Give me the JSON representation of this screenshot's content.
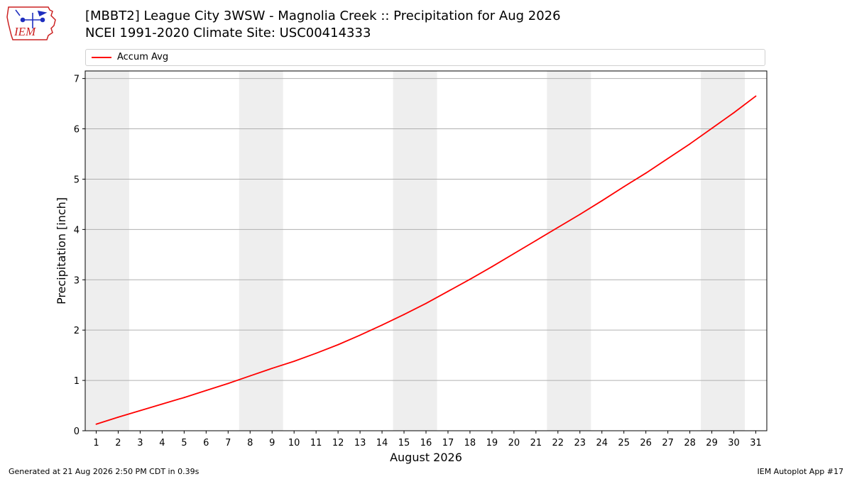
{
  "header": {
    "title_line1": "[MBBT2] League City 3WSW - Magnolia Creek :: Precipitation for Aug 2026",
    "title_line2": "NCEI 1991-2020 Climate Site: USC00414333"
  },
  "logo": {
    "text": "IEM"
  },
  "footer": {
    "generated": "Generated at 21 Aug 2026 2:50 PM CDT in 0.39s",
    "app": "IEM Autoplot App #17"
  },
  "colors": {
    "series": "#ff0000",
    "weekend_band": "#eeeeee",
    "grid": "#b0b0b0",
    "logo_red": "#cc2222",
    "logo_blue": "#1f2fbf"
  },
  "chart_data": {
    "type": "line",
    "title": "[MBBT2] League City 3WSW - Magnolia Creek :: Precipitation for Aug 2026",
    "xlabel": "August 2026",
    "ylabel": "Precipitation [inch]",
    "x": [
      1,
      2,
      3,
      4,
      5,
      6,
      7,
      8,
      9,
      10,
      11,
      12,
      13,
      14,
      15,
      16,
      17,
      18,
      19,
      20,
      21,
      22,
      23,
      24,
      25,
      26,
      27,
      28,
      29,
      30,
      31
    ],
    "xlim": [
      0.5,
      31.5
    ],
    "ylim": [
      0,
      7.15
    ],
    "yticks": [
      0,
      1,
      2,
      3,
      4,
      5,
      6,
      7
    ],
    "grid": "horizontal",
    "legend_position": "top",
    "weekend_bands": [
      [
        1,
        2
      ],
      [
        8,
        9
      ],
      [
        15,
        16
      ],
      [
        22,
        23
      ],
      [
        29,
        30
      ]
    ],
    "series": [
      {
        "name": "Accum Avg",
        "color": "#ff0000",
        "values": [
          0.13,
          0.27,
          0.4,
          0.53,
          0.66,
          0.8,
          0.94,
          1.09,
          1.24,
          1.38,
          1.54,
          1.71,
          1.9,
          2.1,
          2.31,
          2.53,
          2.77,
          3.01,
          3.26,
          3.52,
          3.78,
          4.04,
          4.3,
          4.57,
          4.85,
          5.12,
          5.41,
          5.7,
          6.01,
          6.32,
          6.65
        ]
      }
    ]
  }
}
